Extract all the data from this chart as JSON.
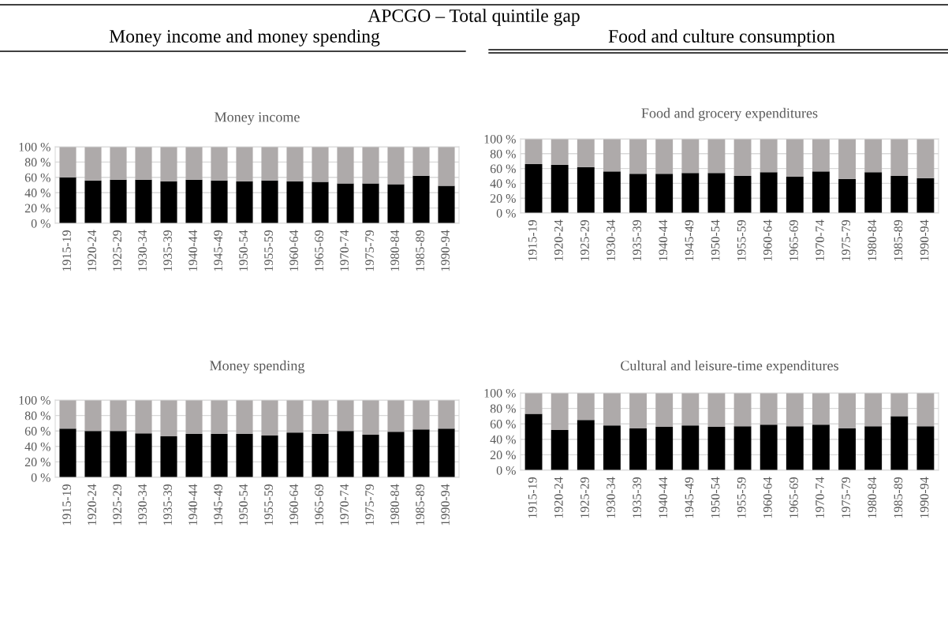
{
  "chart_data": [
    {
      "type": "bar",
      "title": "Money income",
      "annotations": [
        "APCGO – Total quintile gap",
        "Money income and money spending"
      ],
      "stacked": true,
      "grid": "y",
      "categories": [
        "1915-19",
        "1920-24",
        "1925-29",
        "1930-34",
        "1935-39",
        "1940-44",
        "1945-49",
        "1950-54",
        "1955-59",
        "1960-64",
        "1965-69",
        "1970-74",
        "1975-79",
        "1980-84",
        "1985-89",
        "1990-94"
      ],
      "ylim": [
        0,
        100
      ],
      "yticks": [
        {
          "value": 0,
          "label": "0 %"
        },
        {
          "value": 20,
          "label": "20 %"
        },
        {
          "value": 40,
          "label": "40 %"
        },
        {
          "value": 60,
          "label": "60 %"
        },
        {
          "value": 80,
          "label": "80 %"
        },
        {
          "value": 100,
          "label": "100 %"
        }
      ],
      "series": [
        {
          "color": "#000000",
          "values": [
            60,
            56,
            57,
            57,
            55,
            57,
            56,
            55,
            56,
            55,
            54,
            52,
            52,
            51,
            62,
            49
          ]
        },
        {
          "color": "#aeaaaa",
          "values": [
            40,
            44,
            43,
            43,
            45,
            43,
            44,
            45,
            44,
            45,
            46,
            48,
            48,
            49,
            38,
            51
          ]
        }
      ]
    },
    {
      "type": "bar",
      "title": "Food and grocery expenditures",
      "annotations": [
        "Food and culture consumption"
      ],
      "stacked": true,
      "grid": "y",
      "categories": [
        "1915-19",
        "1920-24",
        "1925-29",
        "1930-34",
        "1935-39",
        "1940-44",
        "1945-49",
        "1950-54",
        "1955-59",
        "1960-64",
        "1965-69",
        "1970-74",
        "1975-79",
        "1980-84",
        "1985-89",
        "1990-94"
      ],
      "ylim": [
        0,
        100
      ],
      "yticks": [
        {
          "value": 0,
          "label": "0 %"
        },
        {
          "value": 20,
          "label": "20 %"
        },
        {
          "value": 40,
          "label": "40 %"
        },
        {
          "value": 60,
          "label": "60 %"
        },
        {
          "value": 80,
          "label": "80 %"
        },
        {
          "value": 100,
          "label": "100 %"
        }
      ],
      "series": [
        {
          "color": "#000000",
          "values": [
            66,
            65,
            62,
            56,
            53,
            53,
            54,
            54,
            50,
            55,
            49,
            56,
            46,
            55,
            50,
            47
          ]
        },
        {
          "color": "#aeaaaa",
          "values": [
            34,
            35,
            38,
            44,
            47,
            47,
            46,
            46,
            50,
            45,
            51,
            44,
            54,
            45,
            50,
            53
          ]
        }
      ]
    },
    {
      "type": "bar",
      "title": "Money spending",
      "stacked": true,
      "grid": "y",
      "categories": [
        "1915-19",
        "1920-24",
        "1925-29",
        "1930-34",
        "1935-39",
        "1940-44",
        "1945-49",
        "1950-54",
        "1955-59",
        "1960-64",
        "1965-69",
        "1970-74",
        "1975-79",
        "1980-84",
        "1985-89",
        "1990-94"
      ],
      "ylim": [
        0,
        100
      ],
      "yticks": [
        {
          "value": 0,
          "label": "0 %"
        },
        {
          "value": 20,
          "label": "20 %"
        },
        {
          "value": 40,
          "label": "40 %"
        },
        {
          "value": 60,
          "label": "60 %"
        },
        {
          "value": 80,
          "label": "80 %"
        },
        {
          "value": 100,
          "label": "100 %"
        }
      ],
      "series": [
        {
          "color": "#000000",
          "values": [
            63,
            60,
            60,
            57,
            53,
            56,
            56,
            56,
            54,
            58,
            56,
            60,
            55,
            59,
            62,
            63
          ]
        },
        {
          "color": "#aeaaaa",
          "values": [
            37,
            40,
            40,
            43,
            47,
            44,
            44,
            44,
            46,
            42,
            44,
            40,
            45,
            41,
            38,
            37
          ]
        }
      ]
    },
    {
      "type": "bar",
      "title": "Cultural and leisure-time expenditures",
      "stacked": true,
      "grid": "y",
      "categories": [
        "1915-19",
        "1920-24",
        "1925-29",
        "1930-34",
        "1935-39",
        "1940-44",
        "1945-49",
        "1950-54",
        "1955-59",
        "1960-64",
        "1965-69",
        "1970-74",
        "1975-79",
        "1980-84",
        "1985-89",
        "1990-94"
      ],
      "ylim": [
        0,
        100
      ],
      "yticks": [
        {
          "value": 0,
          "label": "0 %"
        },
        {
          "value": 20,
          "label": "20 %"
        },
        {
          "value": 40,
          "label": "40 %"
        },
        {
          "value": 60,
          "label": "60 %"
        },
        {
          "value": 80,
          "label": "80 %"
        },
        {
          "value": 100,
          "label": "100 %"
        }
      ],
      "series": [
        {
          "color": "#000000",
          "values": [
            73,
            52,
            65,
            58,
            54,
            56,
            58,
            56,
            57,
            59,
            57,
            59,
            54,
            57,
            70,
            57
          ]
        },
        {
          "color": "#aeaaaa",
          "values": [
            27,
            48,
            35,
            42,
            46,
            44,
            42,
            44,
            43,
            41,
            43,
            41,
            46,
            43,
            30,
            43
          ]
        }
      ]
    }
  ]
}
